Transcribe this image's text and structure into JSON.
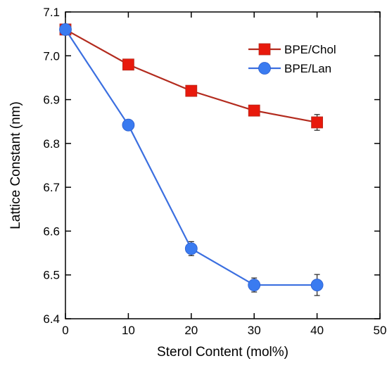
{
  "chart_data": {
    "type": "line",
    "xlabel": "Sterol Content  (mol%)",
    "ylabel": "Lattice Constant (nm)",
    "xlim": [
      0,
      50
    ],
    "ylim": [
      6.4,
      7.1
    ],
    "xticks": [
      0,
      10,
      20,
      30,
      40,
      50
    ],
    "yticks": [
      6.4,
      6.5,
      6.6,
      6.7,
      6.8,
      6.9,
      7.0,
      7.1
    ],
    "xtick_labels": [
      "0",
      "10",
      "20",
      "30",
      "40",
      "50"
    ],
    "ytick_labels": [
      "6.4",
      "6.5",
      "6.6",
      "6.7",
      "6.8",
      "6.9",
      "7.0",
      "7.1"
    ],
    "grid": false,
    "legend_position": "top-right",
    "series": [
      {
        "name": "BPE/Chol",
        "color": "#b32b1e",
        "marker_color": "#e8190c",
        "marker": "square",
        "x": [
          0,
          10,
          20,
          30,
          40
        ],
        "y": [
          7.06,
          6.98,
          6.92,
          6.875,
          6.848
        ],
        "error": [
          0.0,
          0.005,
          0.005,
          0.007,
          0.018
        ]
      },
      {
        "name": "BPE/Lan",
        "color": "#3b6fe0",
        "marker_color": "#3a7bf0",
        "marker": "circle",
        "x": [
          0,
          10,
          20,
          30,
          40
        ],
        "y": [
          7.06,
          6.842,
          6.56,
          6.477,
          6.477
        ],
        "error": [
          0.0,
          0.005,
          0.016,
          0.016,
          0.024
        ]
      }
    ]
  }
}
